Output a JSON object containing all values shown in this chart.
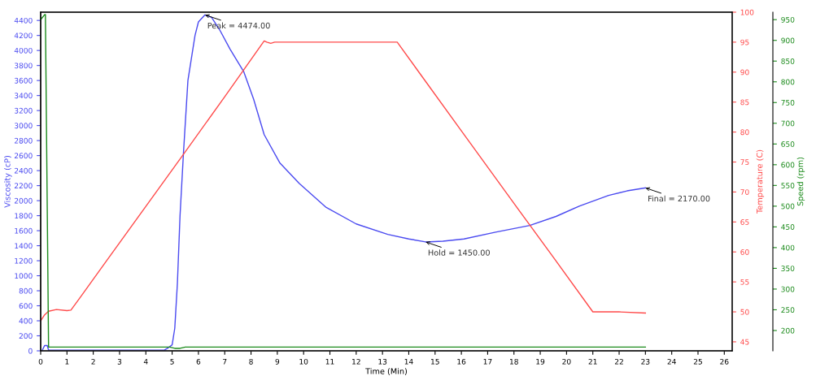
{
  "chart_data": {
    "type": "line",
    "xlabel": "Time (Min)",
    "ylabel": "Viscosity (cP)",
    "y2label": "Temperature (C)",
    "y3label": "Speed (rpm)",
    "xlim": [
      0,
      26.3
    ],
    "xticks": [
      0,
      1,
      2,
      3,
      4,
      5,
      6,
      7,
      8,
      9,
      10,
      11,
      12,
      13,
      14,
      15,
      16,
      17,
      18,
      19,
      20,
      21,
      22,
      23,
      24,
      25,
      26
    ],
    "ylim": [
      0,
      4510
    ],
    "yticks": [
      0,
      200,
      400,
      600,
      800,
      1000,
      1200,
      1400,
      1600,
      1800,
      2000,
      2200,
      2400,
      2600,
      2800,
      3000,
      3200,
      3400,
      3600,
      3800,
      4000,
      4200,
      4400
    ],
    "y2lim": [
      43.5,
      100
    ],
    "y2ticks": [
      45,
      50,
      55,
      60,
      65,
      70,
      75,
      80,
      85,
      90,
      95,
      100
    ],
    "y3lim": [
      151,
      968
    ],
    "y3ticks": [
      200,
      250,
      300,
      350,
      400,
      450,
      500,
      550,
      600,
      650,
      700,
      750,
      800,
      850,
      900,
      950
    ],
    "grid": false,
    "legend": false,
    "marker": "none",
    "line_style": "solid",
    "series": [
      {
        "color": "#4a4af0",
        "axis": "y",
        "x": [
          0.05,
          0.15,
          0.25,
          0.3,
          1,
          2,
          3,
          4,
          4.7,
          4.85,
          5.0,
          5.1,
          5.2,
          5.3,
          5.43,
          5.6,
          5.87,
          6.0,
          6.25,
          6.5,
          6.8,
          7.2,
          7.72,
          8.1,
          8.5,
          9.1,
          9.83,
          10.86,
          12.0,
          13.2,
          14.0,
          14.64,
          15.3,
          16.1,
          17.3,
          18.6,
          19.6,
          20.5,
          21.6,
          22.3,
          23.0
        ],
        "values": [
          0,
          70,
          70,
          10,
          10,
          10,
          10,
          10,
          10,
          40,
          80,
          300,
          900,
          1800,
          2630,
          3600,
          4200,
          4380,
          4474,
          4440,
          4280,
          4020,
          3720,
          3350,
          2880,
          2500,
          2230,
          1910,
          1690,
          1550,
          1490,
          1450,
          1460,
          1490,
          1580,
          1670,
          1790,
          1930,
          2070,
          2130,
          2170
        ]
      },
      {
        "color": "#ff4a4a",
        "axis": "y2",
        "x": [
          0.0,
          0.15,
          0.3,
          0.6,
          1.0,
          1.15,
          1.5,
          2.5,
          4.0,
          5.5,
          7.0,
          8.5,
          8.6,
          8.75,
          8.9,
          10,
          12,
          13.56,
          14.5,
          16,
          18,
          19.5,
          21.0,
          22,
          23.0
        ],
        "values": [
          48.5,
          49.5,
          50.1,
          50.4,
          50.2,
          50.3,
          52.4,
          58.5,
          67.6,
          76.7,
          85.9,
          95.2,
          95.0,
          94.8,
          95.0,
          95.0,
          95.0,
          95.0,
          89.3,
          80.2,
          68.1,
          59.1,
          50.0,
          50.0,
          49.8
        ]
      },
      {
        "color": "#1a8a1a",
        "axis": "y3",
        "x": [
          0.0,
          0.15,
          0.18,
          0.3,
          1,
          3,
          4.9,
          5.1,
          5.3,
          5.5,
          8,
          12,
          16,
          20,
          23
        ],
        "values": [
          950,
          962,
          962,
          160,
          160,
          160,
          160,
          157,
          157,
          160,
          160,
          160,
          160,
          160,
          160
        ]
      }
    ],
    "annotations": [
      {
        "text": "Peak = 4474.00",
        "x": 6.25,
        "y": 4474
      },
      {
        "text": "Hold = 1450.00",
        "x": 14.64,
        "y": 1450
      },
      {
        "text": "Final = 2170.00",
        "x": 23.0,
        "y": 2170
      }
    ]
  }
}
